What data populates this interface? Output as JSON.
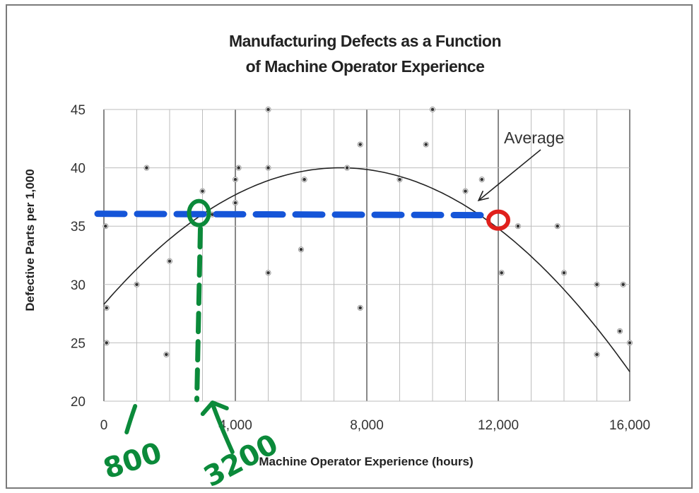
{
  "chart_data": {
    "type": "scatter",
    "title_line1": "Manufacturing Defects as a Function",
    "title_line2": "of Machine Operator Experience",
    "xlabel": "Machine Operator Experience (hours)",
    "ylabel": "Defective Parts per 1,000",
    "xlim": [
      0,
      16000
    ],
    "ylim": [
      20,
      45
    ],
    "x_ticks": [
      0,
      4000,
      8000,
      12000,
      16000
    ],
    "x_tick_labels": [
      "0",
      "4,000",
      "8,000",
      "12,000",
      "16,000"
    ],
    "y_ticks": [
      20,
      25,
      30,
      35,
      40,
      45
    ],
    "y_tick_labels": [
      "20",
      "25",
      "30",
      "35",
      "40",
      "45"
    ],
    "grid": true,
    "points": [
      {
        "x": 50,
        "y": 35
      },
      {
        "x": 80,
        "y": 28
      },
      {
        "x": 80,
        "y": 25
      },
      {
        "x": 1000,
        "y": 30
      },
      {
        "x": 1300,
        "y": 40
      },
      {
        "x": 1900,
        "y": 24
      },
      {
        "x": 2000,
        "y": 32
      },
      {
        "x": 3000,
        "y": 38
      },
      {
        "x": 3300,
        "y": 36
      },
      {
        "x": 4000,
        "y": 39
      },
      {
        "x": 4000,
        "y": 37
      },
      {
        "x": 4100,
        "y": 40
      },
      {
        "x": 5000,
        "y": 45
      },
      {
        "x": 5000,
        "y": 40
      },
      {
        "x": 5000,
        "y": 31
      },
      {
        "x": 6000,
        "y": 33
      },
      {
        "x": 6100,
        "y": 39
      },
      {
        "x": 7400,
        "y": 40
      },
      {
        "x": 7800,
        "y": 42
      },
      {
        "x": 7800,
        "y": 28
      },
      {
        "x": 9000,
        "y": 39
      },
      {
        "x": 9800,
        "y": 42
      },
      {
        "x": 10000,
        "y": 45
      },
      {
        "x": 11000,
        "y": 38
      },
      {
        "x": 11500,
        "y": 39
      },
      {
        "x": 12100,
        "y": 31
      },
      {
        "x": 12600,
        "y": 35
      },
      {
        "x": 13800,
        "y": 35
      },
      {
        "x": 14000,
        "y": 31
      },
      {
        "x": 15000,
        "y": 24
      },
      {
        "x": 15000,
        "y": 30
      },
      {
        "x": 15700,
        "y": 26
      },
      {
        "x": 15800,
        "y": 30
      },
      {
        "x": 16000,
        "y": 25
      }
    ],
    "series": [
      {
        "name": "Average",
        "type": "curve",
        "vertex_x": 7200,
        "vertex_y": 40,
        "start_y": 28.3
      }
    ],
    "annotations": [
      {
        "text": "Average",
        "points_to_x": 11400,
        "points_to_y": 37.2
      }
    ]
  },
  "handwritten": {
    "line_y": 36,
    "line_from_x": 0,
    "line_to_x": 11800,
    "circle_left_x": 3000,
    "circle_right_x": 12000,
    "label_800": "800",
    "label_800_x": 800,
    "label_3200": "3200",
    "label_3200_x": 3200,
    "blue": "#1555d8",
    "green": "#0b8a3a",
    "red": "#e0201c"
  },
  "colors": {
    "grid": "#bdbdbd",
    "major_grid": "#555555",
    "curve": "#222222",
    "points": "#333333"
  }
}
